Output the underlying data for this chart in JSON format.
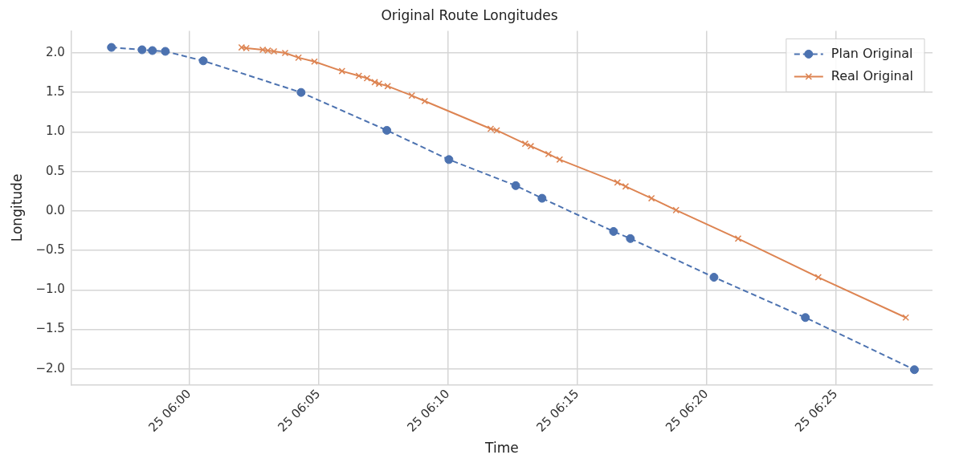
{
  "chart_data": {
    "type": "line",
    "title": "Original Route Longitudes",
    "xlabel": "Time",
    "ylabel": "Longitude",
    "xlim": [
      "--01-25T05:55:26",
      "--01-25T06:28:44"
    ],
    "ylim": [
      -2.2,
      2.28
    ],
    "xticks": [
      {
        "value": "--01-25T06:00",
        "label": "25 06:00"
      },
      {
        "value": "--01-25T06:05",
        "label": "25 06:05"
      },
      {
        "value": "--01-25T06:10",
        "label": "25 06:10"
      },
      {
        "value": "--01-25T06:15",
        "label": "25 06:15"
      },
      {
        "value": "--01-25T06:20",
        "label": "25 06:20"
      },
      {
        "value": "--01-25T06:25",
        "label": "25 06:25"
      }
    ],
    "yticks": [
      {
        "value": -2,
        "label": "−2.0"
      },
      {
        "value": -1.5,
        "label": "−1.5"
      },
      {
        "value": -1,
        "label": "−1.0"
      },
      {
        "value": -0.5,
        "label": "−0.5"
      },
      {
        "value": 0,
        "label": "0.0"
      },
      {
        "value": 0.5,
        "label": "0.5"
      },
      {
        "value": 1,
        "label": "1.0"
      },
      {
        "value": 1.5,
        "label": "1.5"
      },
      {
        "value": 2,
        "label": "2.0"
      }
    ],
    "grid": true,
    "legend": "top right",
    "series": [
      {
        "name": "Plan Original",
        "color": "#4c72b0",
        "marker": "circle",
        "line_style": "dashed",
        "x": [
          "--01-25T05:56:59",
          "--01-25T05:58:10",
          "--01-25T05:58:34",
          "--01-25T05:59:04",
          "--01-25T06:00:32",
          "--01-25T06:04:19",
          "--01-25T06:07:38",
          "--01-25T06:10:02",
          "--01-25T06:12:37",
          "--01-25T06:13:38",
          "--01-25T06:16:24",
          "--01-25T06:17:03",
          "--01-25T06:20:17",
          "--01-25T06:23:49",
          "--01-25T06:28:02"
        ],
        "values": [
          2.07,
          2.04,
          2.03,
          2.02,
          1.9,
          1.5,
          1.02,
          0.65,
          0.32,
          0.16,
          -0.26,
          -0.35,
          -0.84,
          -1.35,
          -2.01
        ]
      },
      {
        "name": "Real Original",
        "color": "#dd8452",
        "marker": "cross",
        "line_style": "solid",
        "x": [
          "--01-25T06:02:01",
          "--01-25T06:02:12",
          "--01-25T06:02:50",
          "--01-25T06:03:02",
          "--01-25T06:03:16",
          "--01-25T06:03:42",
          "--01-25T06:04:13",
          "--01-25T06:04:50",
          "--01-25T06:05:54",
          "--01-25T06:06:33",
          "--01-25T06:06:52",
          "--01-25T06:07:10",
          "--01-25T06:07:20",
          "--01-25T06:07:40",
          "--01-25T06:08:36",
          "--01-25T06:09:06",
          "--01-25T06:11:39",
          "--01-25T06:11:53",
          "--01-25T06:12:59",
          "--01-25T06:13:12",
          "--01-25T06:13:53",
          "--01-25T06:14:19",
          "--01-25T06:16:33",
          "--01-25T06:16:52",
          "--01-25T06:17:52",
          "--01-25T06:18:49",
          "--01-25T06:21:13",
          "--01-25T06:24:19",
          "--01-25T06:27:42"
        ],
        "values": [
          2.07,
          2.06,
          2.04,
          2.03,
          2.02,
          2.0,
          1.94,
          1.89,
          1.77,
          1.71,
          1.68,
          1.63,
          1.61,
          1.58,
          1.46,
          1.39,
          1.04,
          1.02,
          0.85,
          0.82,
          0.72,
          0.65,
          0.36,
          0.31,
          0.16,
          0.01,
          -0.35,
          -0.84,
          -1.35
        ]
      }
    ]
  }
}
